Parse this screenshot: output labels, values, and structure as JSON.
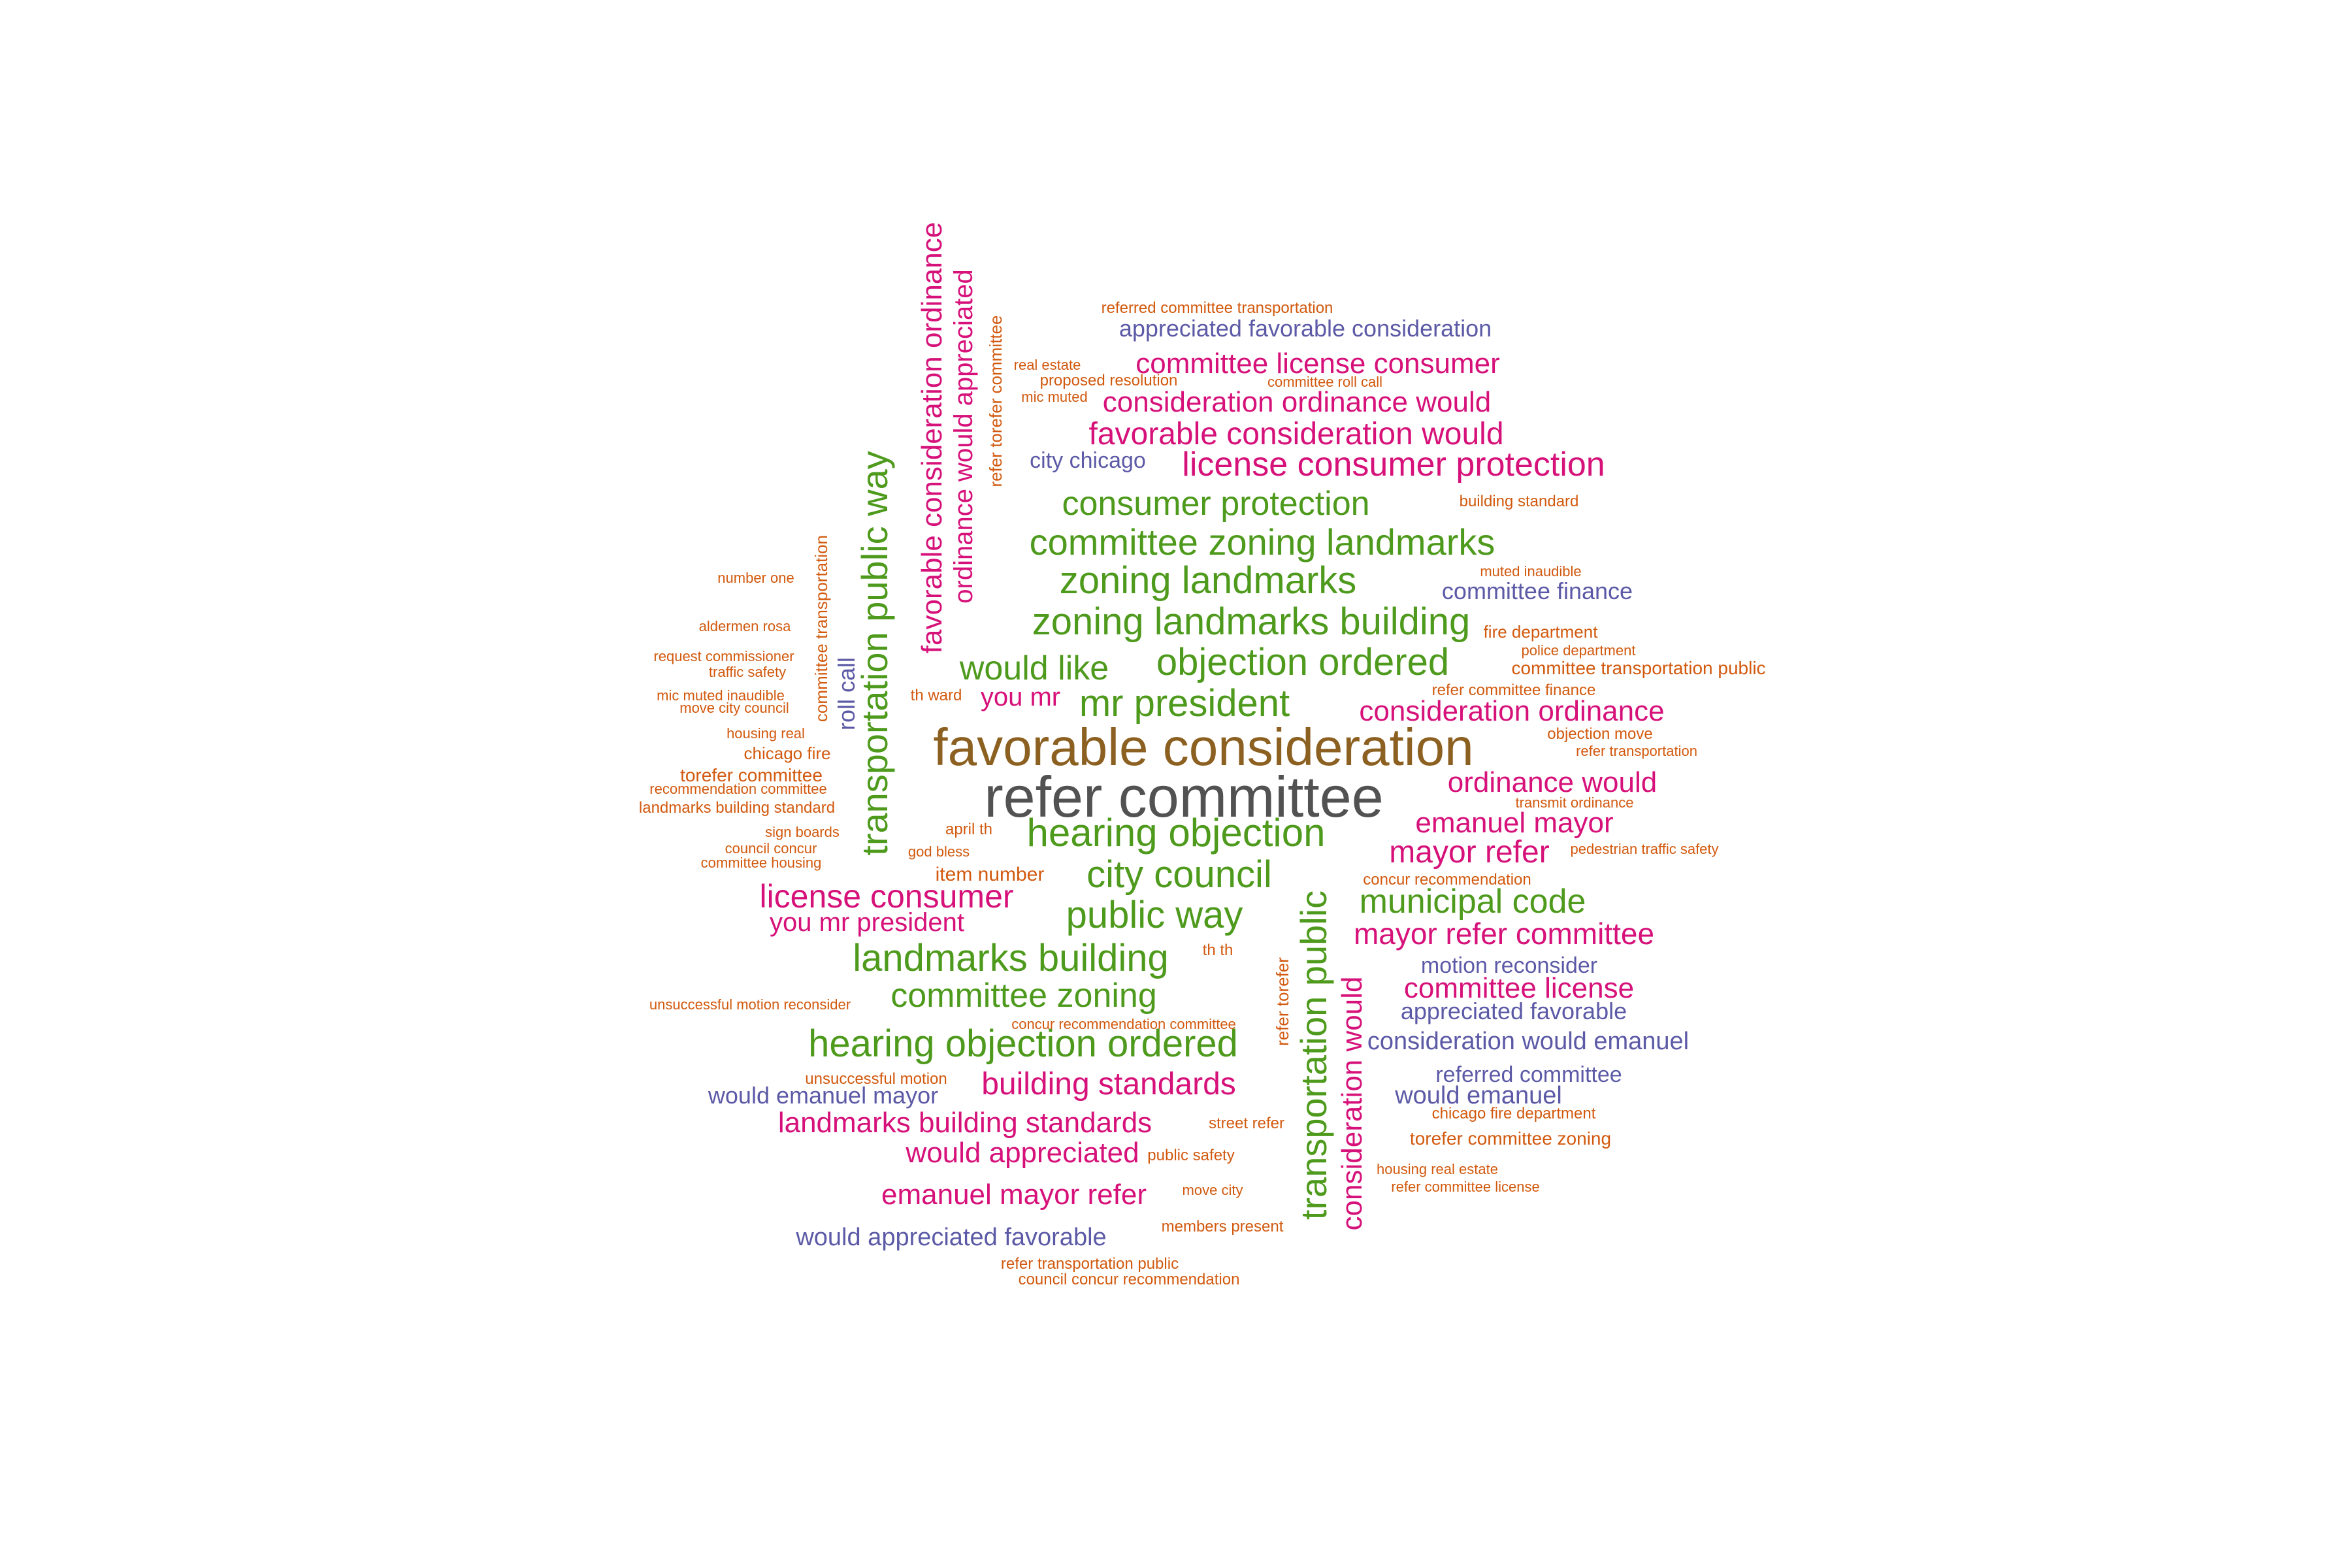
{
  "palette": {
    "gray": "#525252",
    "brown": "#8c6020",
    "green": "#4e9a1c",
    "magenta": "#d6117a",
    "orange": "#d2590e",
    "purple": "#5c5aa6"
  },
  "words": [
    {
      "text": "refer committee",
      "color": "gray",
      "size": 5
    },
    {
      "text": "favorable consideration",
      "color": "brown",
      "size": 5
    },
    {
      "text": "hearing objection",
      "color": "green",
      "size": 4
    },
    {
      "text": "mr president",
      "color": "green",
      "size": 4
    },
    {
      "text": "objection ordered",
      "color": "green",
      "size": 4
    },
    {
      "text": "city council",
      "color": "green",
      "size": 4
    },
    {
      "text": "public way",
      "color": "green",
      "size": 4
    },
    {
      "text": "landmarks building",
      "color": "green",
      "size": 4
    },
    {
      "text": "committee zoning",
      "color": "green",
      "size": 4
    },
    {
      "text": "hearing objection ordered",
      "color": "green",
      "size": 4
    },
    {
      "text": "zoning landmarks",
      "color": "green",
      "size": 4
    },
    {
      "text": "zoning landmarks building",
      "color": "green",
      "size": 4
    },
    {
      "text": "committee zoning landmarks",
      "color": "green",
      "size": 4
    },
    {
      "text": "consumer protection",
      "color": "green",
      "size": 4
    },
    {
      "text": "would like",
      "color": "green",
      "size": 4
    },
    {
      "text": "municipal code",
      "color": "green",
      "size": 4
    },
    {
      "text": "transportation public way",
      "color": "green",
      "size": 4,
      "vertical": true
    },
    {
      "text": "transportation public",
      "color": "green",
      "size": 4,
      "vertical": true
    },
    {
      "text": "license consumer protection",
      "color": "magenta",
      "size": 3
    },
    {
      "text": "favorable consideration would",
      "color": "magenta",
      "size": 3
    },
    {
      "text": "consideration ordinance would",
      "color": "magenta",
      "size": 3
    },
    {
      "text": "committee license consumer",
      "color": "magenta",
      "size": 3
    },
    {
      "text": "consideration ordinance",
      "color": "magenta",
      "size": 3
    },
    {
      "text": "ordinance would",
      "color": "magenta",
      "size": 3
    },
    {
      "text": "emanuel mayor",
      "color": "magenta",
      "size": 3
    },
    {
      "text": "mayor refer",
      "color": "magenta",
      "size": 3
    },
    {
      "text": "mayor refer committee",
      "color": "magenta",
      "size": 3
    },
    {
      "text": "committee license",
      "color": "magenta",
      "size": 3
    },
    {
      "text": "license consumer",
      "color": "magenta",
      "size": 3
    },
    {
      "text": "you mr president",
      "color": "magenta",
      "size": 3
    },
    {
      "text": "you mr",
      "color": "magenta",
      "size": 3
    },
    {
      "text": "building standards",
      "color": "magenta",
      "size": 3
    },
    {
      "text": "landmarks building standards",
      "color": "magenta",
      "size": 3
    },
    {
      "text": "would appreciated",
      "color": "magenta",
      "size": 3
    },
    {
      "text": "emanuel mayor refer",
      "color": "magenta",
      "size": 3
    },
    {
      "text": "favorable consideration ordinance",
      "color": "magenta",
      "size": 3,
      "vertical": true
    },
    {
      "text": "ordinance would appreciated",
      "color": "magenta",
      "size": 3,
      "vertical": true
    },
    {
      "text": "consideration would",
      "color": "magenta",
      "size": 3,
      "vertical": true
    },
    {
      "text": "appreciated favorable consideration",
      "color": "purple",
      "size": 2
    },
    {
      "text": "city chicago",
      "color": "purple",
      "size": 2
    },
    {
      "text": "committee finance",
      "color": "purple",
      "size": 2
    },
    {
      "text": "motion reconsider",
      "color": "purple",
      "size": 2
    },
    {
      "text": "appreciated favorable",
      "color": "purple",
      "size": 2
    },
    {
      "text": "consideration would emanuel",
      "color": "purple",
      "size": 2
    },
    {
      "text": "referred committee",
      "color": "purple",
      "size": 2
    },
    {
      "text": "would emanuel",
      "color": "purple",
      "size": 2
    },
    {
      "text": "would emanuel mayor",
      "color": "purple",
      "size": 2
    },
    {
      "text": "would appreciated favorable",
      "color": "purple",
      "size": 2
    },
    {
      "text": "roll call",
      "color": "purple",
      "size": 2,
      "vertical": true
    },
    {
      "text": "referred committee transportation",
      "color": "orange",
      "size": 1
    },
    {
      "text": "real estate",
      "color": "orange",
      "size": 1
    },
    {
      "text": "proposed resolution",
      "color": "orange",
      "size": 1
    },
    {
      "text": "committee roll call",
      "color": "orange",
      "size": 1
    },
    {
      "text": "mic muted",
      "color": "orange",
      "size": 1
    },
    {
      "text": "building standard",
      "color": "orange",
      "size": 1
    },
    {
      "text": "number one",
      "color": "orange",
      "size": 1
    },
    {
      "text": "muted inaudible",
      "color": "orange",
      "size": 1
    },
    {
      "text": "aldermen rosa",
      "color": "orange",
      "size": 1
    },
    {
      "text": "fire department",
      "color": "orange",
      "size": 1
    },
    {
      "text": "request commissioner",
      "color": "orange",
      "size": 1
    },
    {
      "text": "police department",
      "color": "orange",
      "size": 1
    },
    {
      "text": "traffic safety",
      "color": "orange",
      "size": 1
    },
    {
      "text": "committee transportation public",
      "color": "orange",
      "size": 1
    },
    {
      "text": "mic muted inaudible",
      "color": "orange",
      "size": 1
    },
    {
      "text": "th ward",
      "color": "orange",
      "size": 1
    },
    {
      "text": "refer committee finance",
      "color": "orange",
      "size": 1
    },
    {
      "text": "move city council",
      "color": "orange",
      "size": 1
    },
    {
      "text": "housing real",
      "color": "orange",
      "size": 1
    },
    {
      "text": "objection move",
      "color": "orange",
      "size": 1
    },
    {
      "text": "chicago fire",
      "color": "orange",
      "size": 1
    },
    {
      "text": "refer transportation",
      "color": "orange",
      "size": 1
    },
    {
      "text": "torefer committee",
      "color": "orange",
      "size": 1
    },
    {
      "text": "recommendation committee",
      "color": "orange",
      "size": 1
    },
    {
      "text": "transmit ordinance",
      "color": "orange",
      "size": 1
    },
    {
      "text": "landmarks building standard",
      "color": "orange",
      "size": 1
    },
    {
      "text": "sign boards",
      "color": "orange",
      "size": 1
    },
    {
      "text": "april th",
      "color": "orange",
      "size": 1
    },
    {
      "text": "council concur",
      "color": "orange",
      "size": 1
    },
    {
      "text": "god bless",
      "color": "orange",
      "size": 1
    },
    {
      "text": "pedestrian traffic safety",
      "color": "orange",
      "size": 1
    },
    {
      "text": "committee housing",
      "color": "orange",
      "size": 1
    },
    {
      "text": "item number",
      "color": "orange",
      "size": 1
    },
    {
      "text": "concur recommendation",
      "color": "orange",
      "size": 1
    },
    {
      "text": "th th",
      "color": "orange",
      "size": 1
    },
    {
      "text": "unsuccessful motion reconsider",
      "color": "orange",
      "size": 1
    },
    {
      "text": "concur recommendation committee",
      "color": "orange",
      "size": 1
    },
    {
      "text": "unsuccessful motion",
      "color": "orange",
      "size": 1
    },
    {
      "text": "chicago fire department",
      "color": "orange",
      "size": 1
    },
    {
      "text": "street refer",
      "color": "orange",
      "size": 1
    },
    {
      "text": "torefer committee zoning",
      "color": "orange",
      "size": 1
    },
    {
      "text": "public safety",
      "color": "orange",
      "size": 1
    },
    {
      "text": "housing real estate",
      "color": "orange",
      "size": 1
    },
    {
      "text": "move city",
      "color": "orange",
      "size": 1
    },
    {
      "text": "refer committee license",
      "color": "orange",
      "size": 1
    },
    {
      "text": "members present",
      "color": "orange",
      "size": 1
    },
    {
      "text": "refer transportation public",
      "color": "orange",
      "size": 1
    },
    {
      "text": "council concur recommendation",
      "color": "orange",
      "size": 1
    },
    {
      "text": "refer torefer committee",
      "color": "orange",
      "size": 1,
      "vertical": true
    },
    {
      "text": "committee transportation",
      "color": "orange",
      "size": 1,
      "vertical": true
    },
    {
      "text": "refer torefer",
      "color": "orange",
      "size": 1,
      "vertical": true
    }
  ]
}
